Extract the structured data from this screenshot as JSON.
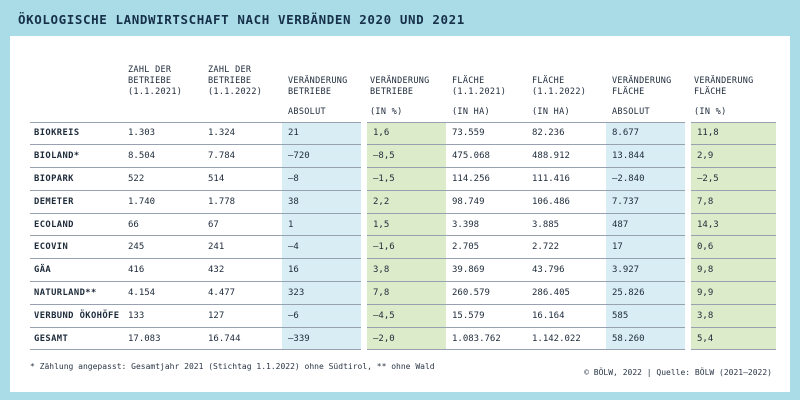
{
  "title": "ÖKOLOGISCHE LANDWIRTSCHAFT NACH VERBÄNDEN 2020 UND 2021",
  "header_row1": [
    "",
    "ZAHL DER\nBETRIEBE\n(1.1.2021)",
    "ZAHL DER\nBETRIEBE\n(1.1.2022)",
    "VERÄNDERUNG\nBETRIEBE",
    "VERÄNDERUNG\nBETRIEBE",
    "FLÄCHE\n(1.1.2021)",
    "FLÄCHE\n(1.1.2022)",
    "VERÄNDERUNG\nFLÄCHE",
    "VERÄNDERUNG\nFLÄCHE"
  ],
  "header_row2": [
    "",
    "",
    "",
    "ABSOLUT",
    "(IN %)",
    "(IN HA)",
    "(IN HA)",
    "ABSOLUT",
    "(IN %)"
  ],
  "rows": [
    [
      "BIOKREIS",
      "1.303",
      "1.324",
      "21",
      "1,6",
      "73.559",
      "82.236",
      "8.677",
      "11,8"
    ],
    [
      "BIOLAND*",
      "8.504",
      "7.784",
      "–720",
      "–8,5",
      "475.068",
      "488.912",
      "13.844",
      "2,9"
    ],
    [
      "BIOPARK",
      "522",
      "514",
      "–8",
      "–1,5",
      "114.256",
      "111.416",
      "–2.840",
      "–2,5"
    ],
    [
      "DEMETER",
      "1.740",
      "1.778",
      "38",
      "2,2",
      "98.749",
      "106.486",
      "7.737",
      "7,8"
    ],
    [
      "ECOLAND",
      "66",
      "67",
      "1",
      "1,5",
      "3.398",
      "3.885",
      "487",
      "14,3"
    ],
    [
      "ECOVIN",
      "245",
      "241",
      "–4",
      "–1,6",
      "2.705",
      "2.722",
      "17",
      "0,6"
    ],
    [
      "GÄA",
      "416",
      "432",
      "16",
      "3,8",
      "39.869",
      "43.796",
      "3.927",
      "9,8"
    ],
    [
      "NATURLAND**",
      "4.154",
      "4.477",
      "323",
      "7,8",
      "260.579",
      "286.405",
      "25.826",
      "9,9"
    ],
    [
      "VERBUND ÖKOHÖFE",
      "133",
      "127",
      "–6",
      "–4,5",
      "15.579",
      "16.164",
      "585",
      "3,8"
    ],
    [
      "GESAMT",
      "17.083",
      "16.744",
      "–339",
      "–2,0",
      "1.083.762",
      "1.142.022",
      "58.260",
      "5,4"
    ]
  ],
  "footnote": "* Zählung angepasst: Gesamtjahr 2021 (Stichtag 1.1.2022) ohne Südtirol, ** ohne Wald",
  "source": "© BÖLW, 2022 | Quelle: BÖLW (2021–2022)",
  "colors": {
    "background": "#a9dce6",
    "blue_column": "#d9eef4",
    "green_column": "#dcebc9"
  }
}
